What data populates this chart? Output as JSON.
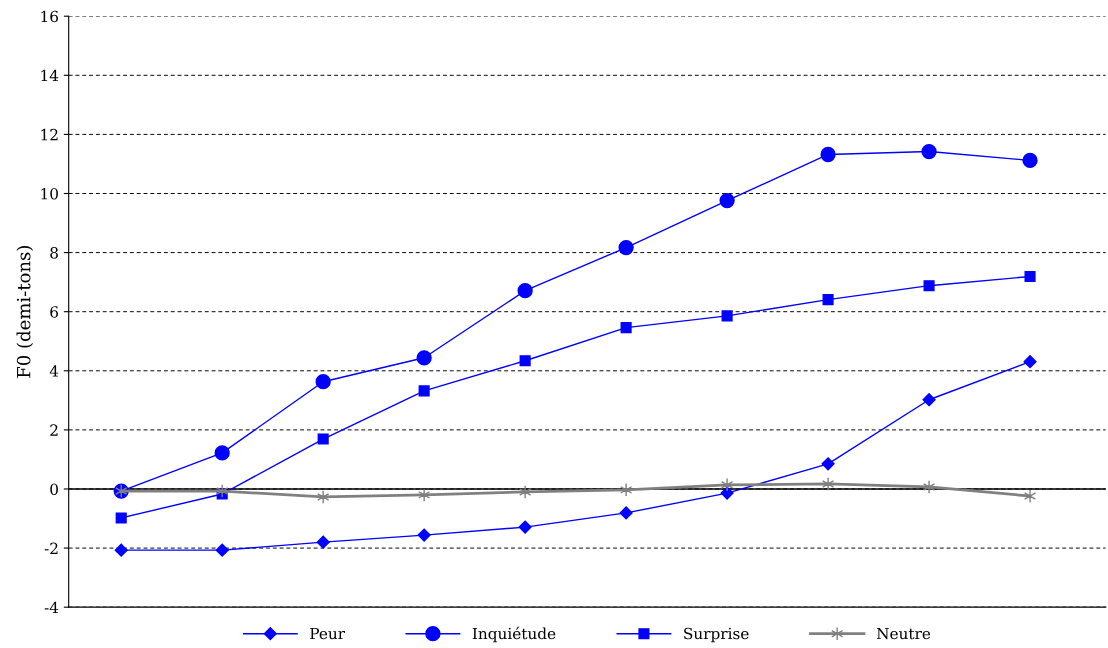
{
  "chart_data": {
    "type": "line",
    "ylabel": "F0 (demi-tons)",
    "categories": [
      null,
      null,
      null,
      null,
      null,
      null,
      null,
      null,
      null,
      null
    ],
    "series": [
      {
        "name": "Peur",
        "color": "#0000ff",
        "marker": "diamond",
        "values": [
          -2.07,
          -2.07,
          -1.8,
          -1.56,
          -1.29,
          -0.81,
          -0.14,
          0.85,
          3.02,
          4.31
        ]
      },
      {
        "name": "Inquiétude",
        "color": "#0000ff",
        "marker": "circle",
        "values": [
          -0.07,
          1.22,
          3.63,
          4.44,
          6.71,
          8.17,
          9.76,
          11.32,
          11.42,
          11.12
        ]
      },
      {
        "name": "Surprise",
        "color": "#0000ff",
        "marker": "square",
        "values": [
          -0.98,
          -0.17,
          1.69,
          3.32,
          4.34,
          5.46,
          5.86,
          6.41,
          6.88,
          7.19
        ]
      },
      {
        "name": "Neutre",
        "color": "#808080",
        "marker": "cross",
        "values": [
          -0.07,
          -0.07,
          -0.27,
          -0.2,
          -0.1,
          -0.03,
          0.14,
          0.17,
          0.07,
          -0.24
        ]
      }
    ],
    "ylim": [
      -4,
      16
    ],
    "yticks": [
      -4,
      -2,
      0,
      2,
      4,
      6,
      8,
      10,
      12,
      14,
      16
    ],
    "ref_lines": [
      {
        "axis": "y",
        "value": 0,
        "color": "#000000",
        "line_style": "solid"
      }
    ],
    "grid": "y",
    "legend": "bottom",
    "tick_labels": "y"
  }
}
